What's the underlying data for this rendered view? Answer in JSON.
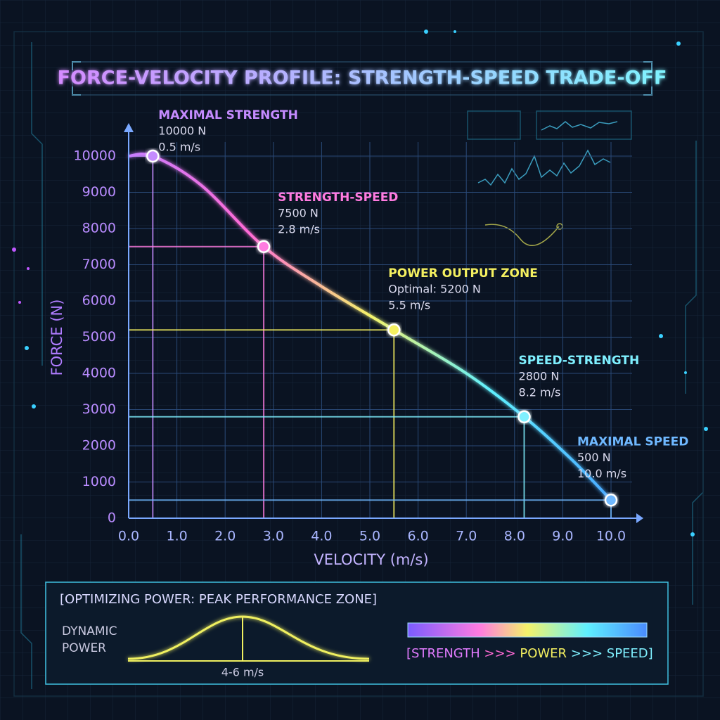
{
  "chart_data": {
    "type": "line",
    "title": "FORCE-VELOCITY PROFILE: STRENGTH-SPEED TRADE-OFF",
    "x_label": "VELOCITY (m/s)",
    "y_label": "FORCE (N)",
    "xlim": [
      0,
      10
    ],
    "ylim": [
      0,
      10000
    ],
    "xticks": [
      {
        "value": 0,
        "label": "0.0"
      },
      {
        "value": 1,
        "label": "1.0"
      },
      {
        "value": 2,
        "label": "2.0"
      },
      {
        "value": 3,
        "label": "3.0"
      },
      {
        "value": 4,
        "label": "4.0"
      },
      {
        "value": 5,
        "label": "5.0"
      },
      {
        "value": 6,
        "label": "6.0"
      },
      {
        "value": 7,
        "label": "7.0"
      },
      {
        "value": 8,
        "label": "8.0"
      },
      {
        "value": 9,
        "label": "9.0"
      },
      {
        "value": 10,
        "label": "10.0"
      }
    ],
    "yticks": [
      0,
      1000,
      2000,
      3000,
      4000,
      5000,
      6000,
      7000,
      8000,
      9000,
      10000
    ],
    "grid": true,
    "series": [
      {
        "colors": [
          "#c77dff",
          "#ff6ad5",
          "#f5f36a",
          "#5ff0ff",
          "#4aa8ff"
        ],
        "x": [
          0,
          0.5,
          1.5,
          2.8,
          4.0,
          5.5,
          7.0,
          8.2,
          9.2,
          10.0
        ],
        "values": [
          10000,
          10000,
          9200,
          7500,
          6400,
          5200,
          4000,
          2800,
          1600,
          500
        ]
      }
    ],
    "annotations": [
      {
        "label": "MAXIMAL STRENGTH",
        "y": 10000,
        "y_text": "10000 N",
        "x": 0.5,
        "x_text": "0.5 m/s",
        "color": "#c58bff"
      },
      {
        "label": "STRENGTH-SPEED",
        "y": 7500,
        "y_text": "7500 N",
        "x": 2.8,
        "x_text": "2.8 m/s",
        "color": "#ff7be0"
      },
      {
        "label": "POWER OUTPUT ZONE",
        "y": 5200,
        "y_text": "Optimal: 5200 N",
        "x": 5.5,
        "x_text": "5.5 m/s",
        "color": "#f4f060"
      },
      {
        "label": "SPEED-STRENGTH",
        "y": 2800,
        "y_text": "2800 N",
        "x": 8.2,
        "x_text": "8.2 m/s",
        "color": "#7ff0ff"
      },
      {
        "label": "MAXIMAL SPEED",
        "y": 500,
        "y_text": "500 N",
        "x": 10.0,
        "x_text": "10.0 m/s",
        "color": "#6fb8ff"
      }
    ]
  },
  "power_panel": {
    "title": "[OPTIMIZING POWER: PEAK PERFORMANCE ZONE]",
    "chart_label": [
      "DYNAMIC",
      "POWER"
    ],
    "range_label": "4-6 m/s",
    "scale": [
      "[STRENGTH",
      ">>>",
      "POWER",
      ">>>",
      "SPEED]"
    ]
  }
}
